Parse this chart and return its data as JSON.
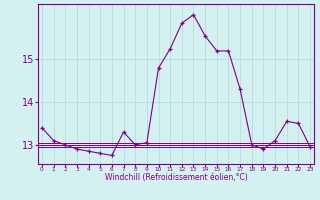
{
  "hours": [
    0,
    1,
    2,
    3,
    4,
    5,
    6,
    7,
    8,
    9,
    10,
    11,
    12,
    13,
    14,
    15,
    16,
    17,
    18,
    19,
    20,
    21,
    22,
    23
  ],
  "windchill": [
    13.4,
    13.1,
    13.0,
    12.9,
    12.85,
    12.8,
    12.75,
    13.3,
    13.0,
    13.05,
    14.8,
    15.25,
    15.85,
    16.05,
    15.55,
    15.2,
    15.2,
    14.3,
    13.0,
    12.9,
    13.1,
    13.55,
    13.5,
    12.95
  ],
  "flat_lines": [
    13.0,
    13.0,
    13.05,
    12.95
  ],
  "line_color": "#800080",
  "bg_color": "#d4f0f0",
  "grid_color": "#b0d8d8",
  "ylim": [
    12.55,
    16.3
  ],
  "yticks": [
    13,
    14,
    15
  ],
  "xlim": [
    -0.3,
    23.3
  ],
  "xlabel": "Windchill (Refroidissement éolien,°C)"
}
